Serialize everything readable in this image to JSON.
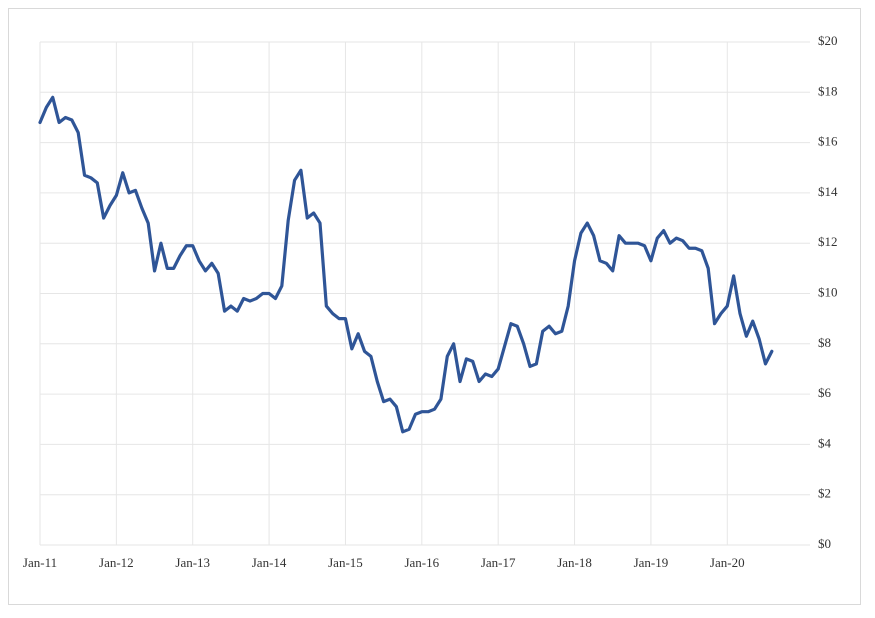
{
  "chart_data": {
    "type": "line",
    "x": [
      "2011-01",
      "2011-02",
      "2011-03",
      "2011-04",
      "2011-05",
      "2011-06",
      "2011-07",
      "2011-08",
      "2011-09",
      "2011-10",
      "2011-11",
      "2011-12",
      "2012-01",
      "2012-02",
      "2012-03",
      "2012-04",
      "2012-05",
      "2012-06",
      "2012-07",
      "2012-08",
      "2012-09",
      "2012-10",
      "2012-11",
      "2012-12",
      "2013-01",
      "2013-02",
      "2013-03",
      "2013-04",
      "2013-05",
      "2013-06",
      "2013-07",
      "2013-08",
      "2013-09",
      "2013-10",
      "2013-11",
      "2013-12",
      "2014-01",
      "2014-02",
      "2014-03",
      "2014-04",
      "2014-05",
      "2014-06",
      "2014-07",
      "2014-08",
      "2014-09",
      "2014-10",
      "2014-11",
      "2014-12",
      "2015-01",
      "2015-02",
      "2015-03",
      "2015-04",
      "2015-05",
      "2015-06",
      "2015-07",
      "2015-08",
      "2015-09",
      "2015-10",
      "2015-11",
      "2015-12",
      "2016-01",
      "2016-02",
      "2016-03",
      "2016-04",
      "2016-05",
      "2016-06",
      "2016-07",
      "2016-08",
      "2016-09",
      "2016-10",
      "2016-11",
      "2016-12",
      "2017-01",
      "2017-02",
      "2017-03",
      "2017-04",
      "2017-05",
      "2017-06",
      "2017-07",
      "2017-08",
      "2017-09",
      "2017-10",
      "2017-11",
      "2017-12",
      "2018-01",
      "2018-02",
      "2018-03",
      "2018-04",
      "2018-05",
      "2018-06",
      "2018-07",
      "2018-08",
      "2018-09",
      "2018-10",
      "2018-11",
      "2018-12",
      "2019-01",
      "2019-02",
      "2019-03",
      "2019-04",
      "2019-05",
      "2019-06",
      "2019-07",
      "2019-08",
      "2019-09",
      "2019-10",
      "2019-11",
      "2019-12",
      "2020-01",
      "2020-02",
      "2020-03",
      "2020-04",
      "2020-05",
      "2020-06",
      "2020-07",
      "2020-08"
    ],
    "values": [
      16.8,
      17.4,
      17.8,
      16.8,
      17.0,
      16.9,
      16.4,
      14.7,
      14.6,
      14.4,
      13.0,
      13.5,
      13.9,
      14.8,
      14.0,
      14.1,
      13.4,
      12.8,
      10.9,
      12.0,
      11.0,
      11.0,
      11.5,
      11.9,
      11.9,
      11.3,
      10.9,
      11.2,
      10.8,
      9.3,
      9.5,
      9.3,
      9.8,
      9.7,
      9.8,
      10.0,
      10.0,
      9.8,
      10.3,
      12.9,
      14.5,
      14.9,
      13.0,
      13.2,
      12.8,
      9.5,
      9.2,
      9.0,
      9.0,
      7.8,
      8.4,
      7.7,
      7.5,
      6.5,
      5.7,
      5.8,
      5.5,
      4.5,
      4.6,
      5.2,
      5.3,
      5.3,
      5.4,
      5.8,
      7.5,
      8.0,
      6.5,
      7.4,
      7.3,
      6.5,
      6.8,
      6.7,
      7.0,
      7.9,
      8.8,
      8.7,
      8.0,
      7.1,
      7.2,
      8.5,
      8.7,
      8.4,
      8.5,
      9.5,
      11.3,
      12.4,
      12.8,
      12.3,
      11.3,
      11.2,
      10.9,
      12.3,
      12.0,
      12.0,
      12.0,
      11.9,
      11.3,
      12.2,
      12.5,
      12.0,
      12.2,
      12.1,
      11.8,
      11.8,
      11.7,
      11.0,
      8.8,
      9.2,
      9.5,
      10.7,
      9.2,
      8.3,
      8.9,
      8.2,
      7.2,
      7.7
    ],
    "color": "#2f5597",
    "xlim": [
      "2011-01",
      "2021-02"
    ],
    "xticks": [
      {
        "value": "2011-01",
        "label": "Jan-11"
      },
      {
        "value": "2012-01",
        "label": "Jan-12"
      },
      {
        "value": "2013-01",
        "label": "Jan-13"
      },
      {
        "value": "2014-01",
        "label": "Jan-14"
      },
      {
        "value": "2015-01",
        "label": "Jan-15"
      },
      {
        "value": "2016-01",
        "label": "Jan-16"
      },
      {
        "value": "2017-01",
        "label": "Jan-17"
      },
      {
        "value": "2018-01",
        "label": "Jan-18"
      },
      {
        "value": "2019-01",
        "label": "Jan-19"
      },
      {
        "value": "2020-01",
        "label": "Jan-20"
      }
    ],
    "ylim": [
      0,
      20
    ],
    "yticks": [
      {
        "value": 0,
        "label": "$0"
      },
      {
        "value": 2,
        "label": "$2"
      },
      {
        "value": 4,
        "label": "$4"
      },
      {
        "value": 6,
        "label": "$6"
      },
      {
        "value": 8,
        "label": "$8"
      },
      {
        "value": 10,
        "label": "$10"
      },
      {
        "value": 12,
        "label": "$12"
      },
      {
        "value": 14,
        "label": "$14"
      },
      {
        "value": 16,
        "label": "$16"
      },
      {
        "value": 18,
        "label": "$18"
      },
      {
        "value": 20,
        "label": "$20"
      }
    ],
    "grid": true
  }
}
